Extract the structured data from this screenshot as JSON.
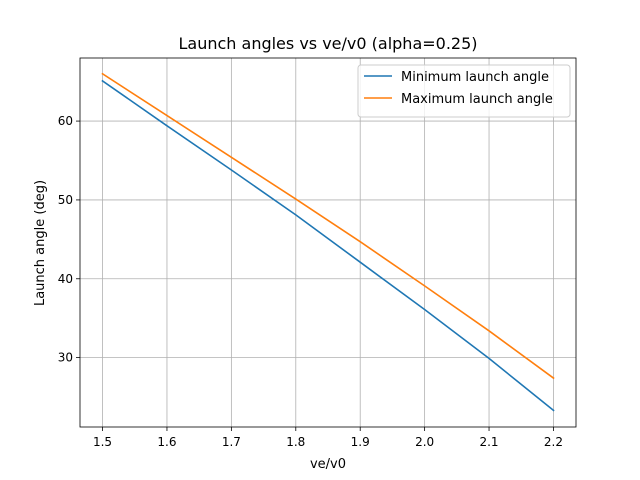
{
  "chart_data": {
    "type": "line",
    "title": "Launch angles vs ve/v0 (alpha=0.25)",
    "xlabel": "ve/v0",
    "ylabel": "Launch angle (deg)",
    "xlim": [
      1.465,
      2.235
    ],
    "ylim": [
      21.2,
      68.0
    ],
    "xticks": [
      1.5,
      1.6,
      1.7,
      1.8,
      1.9,
      2.0,
      2.1,
      2.2
    ],
    "xtick_labels": [
      "1.5",
      "1.6",
      "1.7",
      "1.8",
      "1.9",
      "2.0",
      "2.1",
      "2.2"
    ],
    "yticks": [
      30,
      40,
      50,
      60
    ],
    "ytick_labels": [
      "30",
      "40",
      "50",
      "60"
    ],
    "grid": true,
    "legend_position": "top-right",
    "x": [
      1.5,
      1.6,
      1.7,
      1.8,
      1.9,
      2.0,
      2.1,
      2.2
    ],
    "series": [
      {
        "name": "Minimum launch angle",
        "color": "#1f77b4",
        "values": [
          65.1,
          59.4,
          53.8,
          48.1,
          42.1,
          36.1,
          29.9,
          23.3
        ]
      },
      {
        "name": "Maximum launch angle",
        "color": "#ff7f0e",
        "values": [
          66.0,
          60.7,
          55.4,
          50.1,
          44.7,
          39.1,
          33.4,
          27.4
        ]
      }
    ]
  }
}
